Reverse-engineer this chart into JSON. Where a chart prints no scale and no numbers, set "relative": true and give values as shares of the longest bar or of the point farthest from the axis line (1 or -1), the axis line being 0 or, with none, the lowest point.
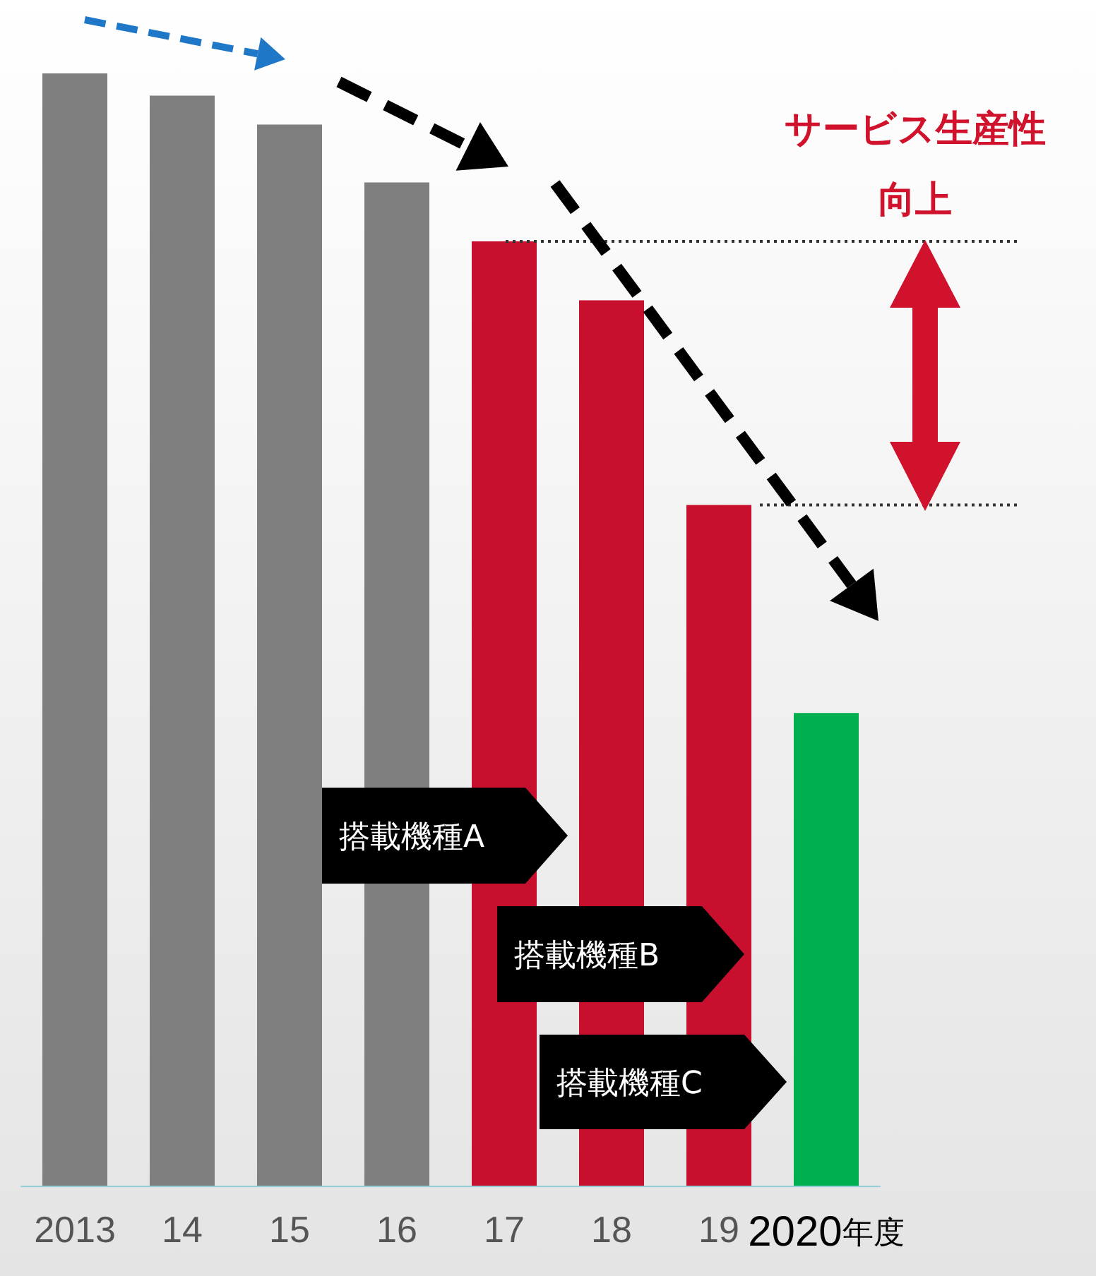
{
  "chart_data": {
    "type": "bar",
    "relative": true,
    "categories": [
      "2013",
      "14",
      "15",
      "16",
      "17",
      "18",
      "19",
      "2020年度"
    ],
    "values": [
      1,
      0.98,
      0.954,
      0.902,
      0.849,
      0.796,
      0.612,
      0.425
    ],
    "colors": [
      "#7f7f7f",
      "#7f7f7f",
      "#7f7f7f",
      "#7f7f7f",
      "#c8102e",
      "#c8102e",
      "#c8102e",
      "#00b050"
    ],
    "annotations": [
      "サービス生産性",
      "向上",
      "搭載機種A",
      "搭載機種B",
      "搭載機種C"
    ],
    "ref_lines": [
      {
        "axis": "y",
        "value": 0.849,
        "color": "#333333",
        "line_style": "dotted"
      },
      {
        "axis": "y",
        "value": 0.612,
        "color": "#333333",
        "line_style": "dotted"
      }
    ]
  }
}
